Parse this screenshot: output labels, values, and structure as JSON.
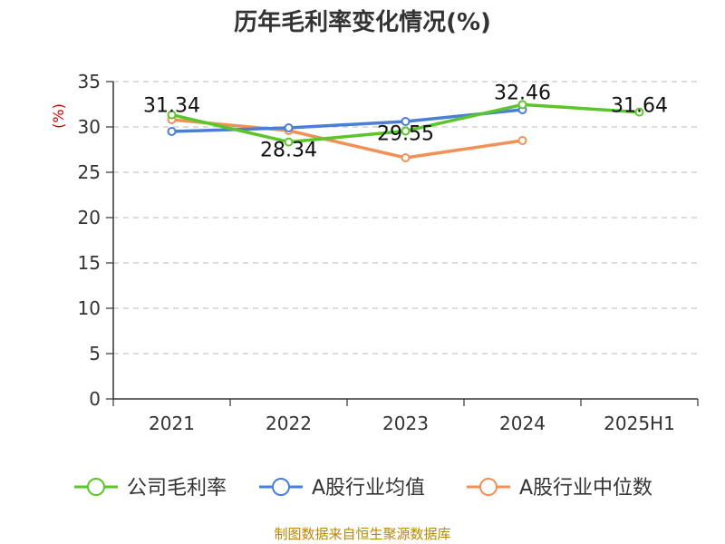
{
  "chart_data": {
    "type": "line",
    "title": "历年毛利率变化情况(%)",
    "ylabel": "(%)",
    "categories": [
      "2021",
      "2022",
      "2023",
      "2024",
      "2025H1"
    ],
    "ylim": [
      0,
      35
    ],
    "yticks": [
      0,
      5,
      10,
      15,
      20,
      25,
      30,
      35
    ],
    "grid": true,
    "legend_position": "bottom",
    "series": [
      {
        "name": "公司毛利率",
        "color": "#5bc62b",
        "values": [
          31.34,
          28.34,
          29.55,
          32.46,
          31.64
        ],
        "labels": [
          "31.34",
          "28.34",
          "29.55",
          "32.46",
          "31.64"
        ]
      },
      {
        "name": "A股行业均值",
        "color": "#4a7fd6",
        "values": [
          29.5,
          29.9,
          30.6,
          31.9,
          null
        ]
      },
      {
        "name": "A股行业中位数",
        "color": "#f29157",
        "values": [
          30.8,
          29.6,
          26.6,
          28.5,
          null
        ]
      }
    ]
  },
  "source": "制图数据来自恒生聚源数据库"
}
